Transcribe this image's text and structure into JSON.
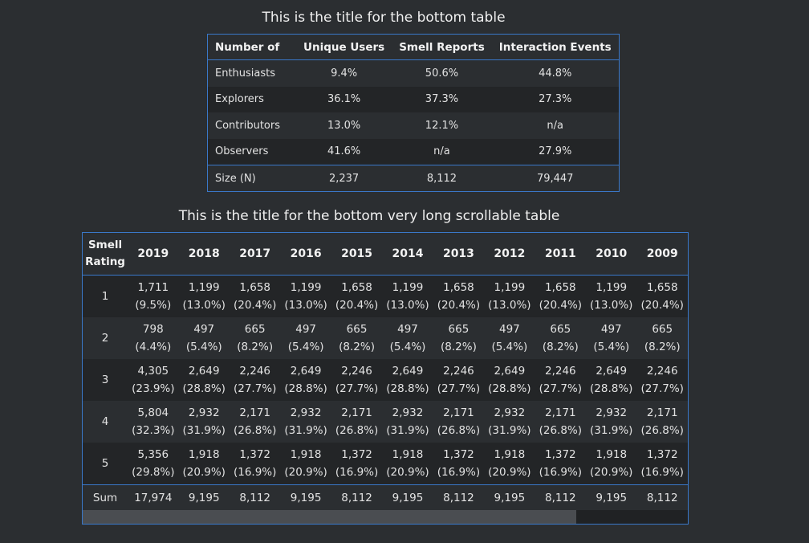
{
  "top": {
    "title": "This is the title for the bottom table",
    "headers": [
      "Number of",
      "Unique Users",
      "Smell Reports",
      "Interaction Events"
    ],
    "rows": [
      [
        "Enthusiasts",
        "9.4%",
        "50.6%",
        "44.8%"
      ],
      [
        "Explorers",
        "36.1%",
        "37.3%",
        "27.3%"
      ],
      [
        "Contributors",
        "13.0%",
        "12.1%",
        "n/a"
      ],
      [
        "Observers",
        "41.6%",
        "n/a",
        "27.9%"
      ]
    ],
    "size_row": [
      "Size (N)",
      "2,237",
      "8,112",
      "79,447"
    ]
  },
  "bottom": {
    "title": "This is the title for the bottom very long scrollable table",
    "row_header": "Smell Rating",
    "years": [
      "2019",
      "2018",
      "2017",
      "2016",
      "2015",
      "2014",
      "2013",
      "2012",
      "2011",
      "2010",
      "2009"
    ],
    "rows": [
      {
        "label": "1",
        "cells": [
          [
            "1,711",
            "(9.5%)"
          ],
          [
            "1,199",
            "(13.0%)"
          ],
          [
            "1,658",
            "(20.4%)"
          ],
          [
            "1,199",
            "(13.0%)"
          ],
          [
            "1,658",
            "(20.4%)"
          ],
          [
            "1,199",
            "(13.0%)"
          ],
          [
            "1,658",
            "(20.4%)"
          ],
          [
            "1,199",
            "(13.0%)"
          ],
          [
            "1,658",
            "(20.4%)"
          ],
          [
            "1,199",
            "(13.0%)"
          ],
          [
            "1,658",
            "(20.4%)"
          ]
        ]
      },
      {
        "label": "2",
        "cells": [
          [
            "798",
            "(4.4%)"
          ],
          [
            "497",
            "(5.4%)"
          ],
          [
            "665",
            "(8.2%)"
          ],
          [
            "497",
            "(5.4%)"
          ],
          [
            "665",
            "(8.2%)"
          ],
          [
            "497",
            "(5.4%)"
          ],
          [
            "665",
            "(8.2%)"
          ],
          [
            "497",
            "(5.4%)"
          ],
          [
            "665",
            "(8.2%)"
          ],
          [
            "497",
            "(5.4%)"
          ],
          [
            "665",
            "(8.2%)"
          ]
        ]
      },
      {
        "label": "3",
        "cells": [
          [
            "4,305",
            "(23.9%)"
          ],
          [
            "2,649",
            "(28.8%)"
          ],
          [
            "2,246",
            "(27.7%)"
          ],
          [
            "2,649",
            "(28.8%)"
          ],
          [
            "2,246",
            "(27.7%)"
          ],
          [
            "2,649",
            "(28.8%)"
          ],
          [
            "2,246",
            "(27.7%)"
          ],
          [
            "2,649",
            "(28.8%)"
          ],
          [
            "2,246",
            "(27.7%)"
          ],
          [
            "2,649",
            "(28.8%)"
          ],
          [
            "2,246",
            "(27.7%)"
          ]
        ]
      },
      {
        "label": "4",
        "cells": [
          [
            "5,804",
            "(32.3%)"
          ],
          [
            "2,932",
            "(31.9%)"
          ],
          [
            "2,171",
            "(26.8%)"
          ],
          [
            "2,932",
            "(31.9%)"
          ],
          [
            "2,171",
            "(26.8%)"
          ],
          [
            "2,932",
            "(31.9%)"
          ],
          [
            "2,171",
            "(26.8%)"
          ],
          [
            "2,932",
            "(31.9%)"
          ],
          [
            "2,171",
            "(26.8%)"
          ],
          [
            "2,932",
            "(31.9%)"
          ],
          [
            "2,171",
            "(26.8%)"
          ]
        ]
      },
      {
        "label": "5",
        "cells": [
          [
            "5,356",
            "(29.8%)"
          ],
          [
            "1,918",
            "(20.9%)"
          ],
          [
            "1,372",
            "(16.9%)"
          ],
          [
            "1,918",
            "(20.9%)"
          ],
          [
            "1,372",
            "(16.9%)"
          ],
          [
            "1,918",
            "(20.9%)"
          ],
          [
            "1,372",
            "(16.9%)"
          ],
          [
            "1,918",
            "(20.9%)"
          ],
          [
            "1,372",
            "(16.9%)"
          ],
          [
            "1,918",
            "(20.9%)"
          ],
          [
            "1,372",
            "(16.9%)"
          ]
        ]
      }
    ],
    "sum_label": "Sum",
    "sums": [
      "17,974",
      "9,195",
      "8,112",
      "9,195",
      "8,112",
      "9,195",
      "8,112",
      "9,195",
      "8,112",
      "9,195",
      "8,112"
    ]
  },
  "colors": {
    "background": "#2b2e31",
    "border": "#3a78c9",
    "stripe": "#232527"
  }
}
